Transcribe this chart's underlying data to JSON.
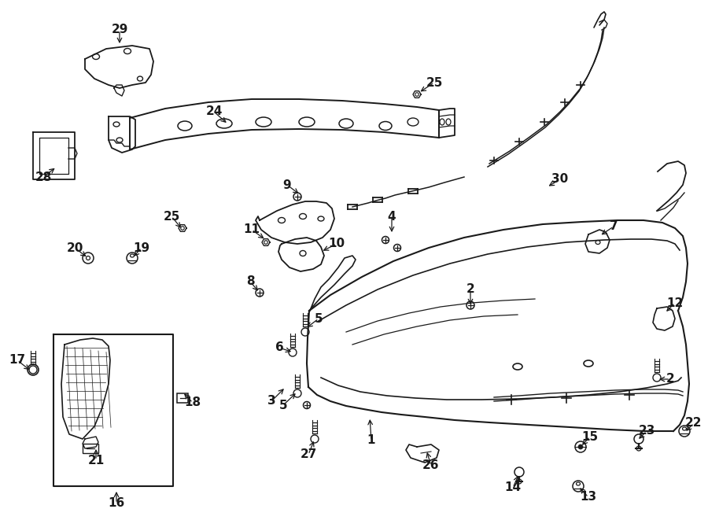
{
  "bg_color": "#ffffff",
  "line_color": "#1a1a1a",
  "label_data": [
    [
      "1",
      470,
      530,
      472,
      560
    ],
    [
      "2",
      598,
      390,
      598,
      368
    ],
    [
      "2",
      835,
      482,
      852,
      482
    ],
    [
      "3",
      363,
      492,
      345,
      510
    ],
    [
      "4",
      498,
      298,
      498,
      275
    ],
    [
      "5",
      388,
      418,
      405,
      405
    ],
    [
      "5",
      378,
      498,
      360,
      515
    ],
    [
      "6",
      373,
      448,
      355,
      442
    ],
    [
      "7",
      762,
      300,
      780,
      288
    ],
    [
      "8",
      330,
      372,
      318,
      358
    ],
    [
      "9",
      382,
      248,
      365,
      235
    ],
    [
      "10",
      408,
      320,
      428,
      310
    ],
    [
      "11",
      338,
      305,
      320,
      292
    ],
    [
      "12",
      845,
      398,
      858,
      385
    ],
    [
      "13",
      735,
      618,
      748,
      632
    ],
    [
      "14",
      660,
      602,
      652,
      620
    ],
    [
      "15",
      738,
      568,
      750,
      555
    ],
    [
      "16",
      148,
      622,
      148,
      640
    ],
    [
      "17",
      40,
      472,
      22,
      458
    ],
    [
      "18",
      232,
      498,
      245,
      512
    ],
    [
      "19",
      168,
      328,
      180,
      315
    ],
    [
      "20",
      112,
      328,
      95,
      315
    ],
    [
      "21",
      122,
      568,
      122,
      585
    ],
    [
      "22",
      870,
      550,
      882,
      538
    ],
    [
      "23",
      810,
      560,
      822,
      548
    ],
    [
      "24",
      290,
      158,
      272,
      142
    ],
    [
      "25",
      532,
      118,
      552,
      105
    ],
    [
      "25",
      232,
      292,
      218,
      275
    ],
    [
      "26",
      542,
      572,
      548,
      592
    ],
    [
      "27",
      400,
      558,
      392,
      578
    ],
    [
      "28",
      72,
      212,
      55,
      225
    ],
    [
      "29",
      152,
      58,
      152,
      38
    ],
    [
      "30",
      695,
      238,
      712,
      228
    ]
  ]
}
